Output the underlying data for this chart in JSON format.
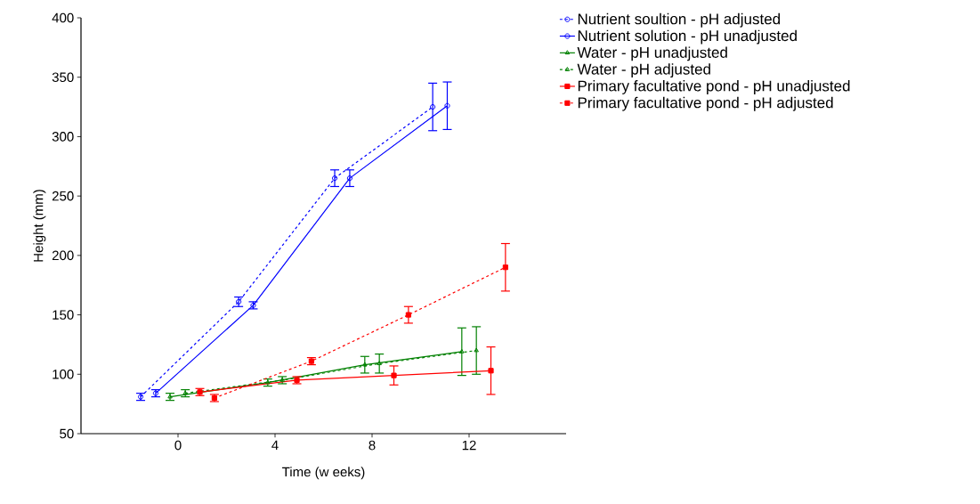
{
  "chart_data": {
    "type": "line",
    "xlabel": "Time (w eeks)",
    "ylabel": "Height (mm)",
    "xlim": [
      -4,
      16
    ],
    "xticks": [
      0,
      4,
      8,
      12
    ],
    "ylim": [
      50,
      400
    ],
    "yticks": [
      50,
      100,
      150,
      200,
      250,
      300,
      350,
      400
    ],
    "grid": false,
    "legend": "top right",
    "series": [
      {
        "name": "Nutrient soultion - pH adjusted",
        "color": "#0000ff",
        "line_style": "dashed",
        "marker": "circle",
        "x": [
          -1.54,
          2.5,
          6.46,
          10.5
        ],
        "values": [
          81,
          161,
          265,
          325
        ],
        "errors": [
          3,
          4,
          7,
          20
        ]
      },
      {
        "name": "Nutrient solution - pH unadjusted",
        "color": "#0000ff",
        "line_style": "solid",
        "marker": "circle",
        "x": [
          -0.92,
          3.1,
          7.08,
          11.1
        ],
        "values": [
          84,
          158,
          265,
          326
        ],
        "errors": [
          3,
          3,
          7,
          20
        ]
      },
      {
        "name": "Water - pH unadjusted",
        "color": "#008000",
        "line_style": "solid",
        "marker": "triangle",
        "x": [
          -0.33,
          3.7,
          7.7,
          11.7
        ],
        "values": [
          81,
          93,
          108,
          119
        ],
        "errors": [
          3,
          3,
          7,
          20
        ]
      },
      {
        "name": "Water - pH adjusted",
        "color": "#008000",
        "line_style": "dashed",
        "marker": "triangle",
        "x": [
          0.3,
          4.3,
          8.3,
          12.3
        ],
        "values": [
          84,
          95,
          109,
          120
        ],
        "errors": [
          3,
          3,
          8,
          20
        ]
      },
      {
        "name": "Primary facultative pond - pH unadjusted",
        "color": "#ff0000",
        "line_style": "solid",
        "marker": "square",
        "x": [
          0.9,
          4.9,
          8.9,
          12.9
        ],
        "values": [
          85,
          95,
          99,
          103
        ],
        "errors": [
          3,
          3,
          8,
          20
        ]
      },
      {
        "name": "Primary facultative pond - pH adjusted",
        "color": "#ff0000",
        "line_style": "dashed",
        "marker": "square",
        "x": [
          1.5,
          5.5,
          9.5,
          13.5
        ],
        "values": [
          80,
          111,
          150,
          190
        ],
        "errors": [
          3,
          3,
          7,
          20
        ]
      }
    ]
  }
}
